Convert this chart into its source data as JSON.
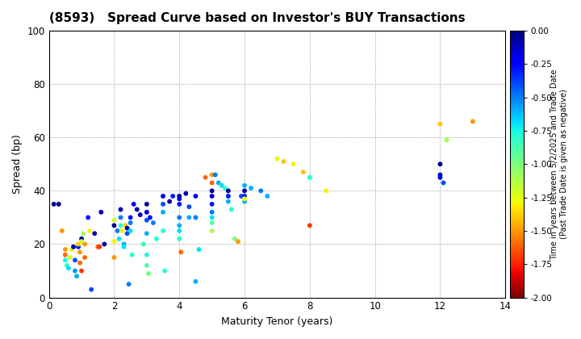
{
  "title": "(8593)   Spread Curve based on Investor's BUY Transactions",
  "xlabel": "Maturity Tenor (years)",
  "ylabel": "Spread (bp)",
  "colorbar_label": "Time in years between 5/2/2025 and Trade Date\n(Past Trade Date is given as negative)",
  "xlim": [
    0,
    14
  ],
  "ylim": [
    0,
    100
  ],
  "xticks": [
    0,
    2,
    4,
    6,
    8,
    10,
    12,
    14
  ],
  "yticks": [
    0,
    20,
    40,
    60,
    80,
    100
  ],
  "cmap_min": -2.0,
  "cmap_max": 0.0,
  "colorbar_ticks": [
    0.0,
    -0.25,
    -0.5,
    -0.75,
    -1.0,
    -1.25,
    -1.5,
    -1.75,
    -2.0
  ],
  "points": [
    [
      0.15,
      35,
      -0.05
    ],
    [
      0.3,
      35,
      -0.05
    ],
    [
      0.4,
      25,
      -1.5
    ],
    [
      0.5,
      14,
      -0.75
    ],
    [
      0.5,
      18,
      -1.5
    ],
    [
      0.5,
      16,
      -1.6
    ],
    [
      0.55,
      12,
      -0.8
    ],
    [
      0.6,
      11,
      -0.7
    ],
    [
      0.65,
      15,
      -1.2
    ],
    [
      0.7,
      18,
      -1.3
    ],
    [
      0.75,
      19,
      -0.1
    ],
    [
      0.8,
      14,
      -0.4
    ],
    [
      0.8,
      10,
      -0.55
    ],
    [
      0.85,
      8,
      -0.6
    ],
    [
      0.9,
      19,
      -0.3
    ],
    [
      0.9,
      20,
      -1.4
    ],
    [
      0.95,
      17,
      -1.5
    ],
    [
      0.95,
      13,
      -1.6
    ],
    [
      1.0,
      22,
      -0.05
    ],
    [
      1.0,
      21,
      -1.2
    ],
    [
      1.0,
      10,
      -1.7
    ],
    [
      1.05,
      24,
      -1.1
    ],
    [
      1.1,
      20,
      -1.5
    ],
    [
      1.1,
      15,
      -1.6
    ],
    [
      1.2,
      30,
      -0.3
    ],
    [
      1.25,
      25,
      -1.3
    ],
    [
      1.3,
      3,
      -0.4
    ],
    [
      1.4,
      24,
      -0.05
    ],
    [
      1.5,
      19,
      -1.6
    ],
    [
      1.55,
      19,
      -1.7
    ],
    [
      1.6,
      32,
      -0.1
    ],
    [
      1.7,
      20,
      -0.05
    ],
    [
      2.0,
      27,
      -0.05
    ],
    [
      2.0,
      29,
      -1.2
    ],
    [
      2.0,
      21,
      -1.3
    ],
    [
      2.0,
      15,
      -1.5
    ],
    [
      2.1,
      25,
      -0.5
    ],
    [
      2.15,
      22,
      -0.7
    ],
    [
      2.2,
      33,
      -0.1
    ],
    [
      2.2,
      30,
      -0.5
    ],
    [
      2.2,
      27,
      -0.8
    ],
    [
      2.25,
      25,
      -1.3
    ],
    [
      2.3,
      20,
      -0.6
    ],
    [
      2.3,
      19,
      -0.7
    ],
    [
      2.35,
      27,
      -1.4
    ],
    [
      2.4,
      26,
      -0.1
    ],
    [
      2.4,
      24,
      -0.4
    ],
    [
      2.45,
      5,
      -0.5
    ],
    [
      2.5,
      30,
      -0.3
    ],
    [
      2.5,
      28,
      -0.5
    ],
    [
      2.5,
      25,
      -0.7
    ],
    [
      2.55,
      16,
      -0.8
    ],
    [
      2.6,
      35,
      -0.2
    ],
    [
      2.7,
      33,
      -0.05
    ],
    [
      2.8,
      31,
      -0.1
    ],
    [
      2.9,
      20,
      -0.8
    ],
    [
      3.0,
      35,
      -0.05
    ],
    [
      3.0,
      32,
      -0.15
    ],
    [
      3.0,
      29,
      -0.4
    ],
    [
      3.0,
      24,
      -0.6
    ],
    [
      3.0,
      16,
      -0.8
    ],
    [
      3.0,
      12,
      -0.9
    ],
    [
      3.05,
      9,
      -1.0
    ],
    [
      3.1,
      30,
      -0.3
    ],
    [
      3.2,
      28,
      -0.5
    ],
    [
      3.3,
      22,
      -0.8
    ],
    [
      3.5,
      38,
      -0.2
    ],
    [
      3.5,
      35,
      -0.4
    ],
    [
      3.5,
      32,
      -0.6
    ],
    [
      3.5,
      25,
      -0.8
    ],
    [
      3.55,
      10,
      -0.8
    ],
    [
      3.7,
      36,
      -0.1
    ],
    [
      3.8,
      38,
      -0.3
    ],
    [
      4.0,
      38,
      -0.05
    ],
    [
      4.0,
      37,
      -0.15
    ],
    [
      4.0,
      35,
      -0.3
    ],
    [
      4.0,
      30,
      -0.5
    ],
    [
      4.0,
      27,
      -0.6
    ],
    [
      4.0,
      25,
      -0.7
    ],
    [
      4.0,
      22,
      -0.8
    ],
    [
      4.05,
      17,
      -1.6
    ],
    [
      4.2,
      39,
      -0.1
    ],
    [
      4.3,
      34,
      -0.4
    ],
    [
      4.3,
      30,
      -0.6
    ],
    [
      4.5,
      38,
      -0.2
    ],
    [
      4.5,
      30,
      -0.5
    ],
    [
      4.5,
      6,
      -0.6
    ],
    [
      4.6,
      18,
      -0.7
    ],
    [
      4.8,
      45,
      -1.6
    ],
    [
      5.0,
      46,
      -1.5
    ],
    [
      5.0,
      43,
      -1.6
    ],
    [
      5.0,
      40,
      -0.05
    ],
    [
      5.0,
      38,
      -0.15
    ],
    [
      5.0,
      35,
      -0.3
    ],
    [
      5.0,
      32,
      -0.5
    ],
    [
      5.0,
      30,
      -0.7
    ],
    [
      5.0,
      28,
      -0.9
    ],
    [
      5.0,
      25,
      -1.1
    ],
    [
      5.1,
      46,
      -0.5
    ],
    [
      5.2,
      43,
      -0.6
    ],
    [
      5.3,
      42,
      -0.7
    ],
    [
      5.4,
      41,
      -0.8
    ],
    [
      5.5,
      40,
      -0.05
    ],
    [
      5.5,
      38,
      -0.3
    ],
    [
      5.5,
      36,
      -0.6
    ],
    [
      5.6,
      33,
      -0.8
    ],
    [
      5.7,
      22,
      -1.0
    ],
    [
      5.8,
      21,
      -1.5
    ],
    [
      5.9,
      38,
      -0.4
    ],
    [
      6.0,
      42,
      -0.6
    ],
    [
      6.0,
      40,
      -0.05
    ],
    [
      6.0,
      38,
      -0.3
    ],
    [
      6.0,
      36,
      -0.6
    ],
    [
      6.0,
      37,
      -1.3
    ],
    [
      6.2,
      41,
      -0.6
    ],
    [
      6.5,
      40,
      -0.5
    ],
    [
      6.7,
      38,
      -0.6
    ],
    [
      7.0,
      52,
      -1.3
    ],
    [
      7.2,
      51,
      -1.4
    ],
    [
      7.5,
      50,
      -1.3
    ],
    [
      7.8,
      47,
      -1.4
    ],
    [
      8.0,
      45,
      -0.7
    ],
    [
      8.0,
      45,
      -0.8
    ],
    [
      8.0,
      27,
      -1.7
    ],
    [
      8.5,
      40,
      -1.3
    ],
    [
      12.0,
      65,
      -1.4
    ],
    [
      12.2,
      59,
      -1.1
    ],
    [
      12.0,
      50,
      -0.05
    ],
    [
      12.0,
      46,
      -0.1
    ],
    [
      12.0,
      45,
      -0.2
    ],
    [
      12.1,
      43,
      -0.4
    ],
    [
      13.0,
      66,
      -1.5
    ]
  ]
}
